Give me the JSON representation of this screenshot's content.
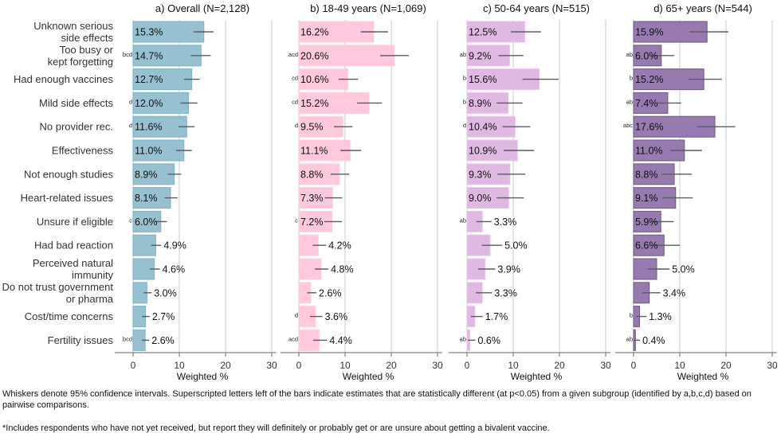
{
  "chart_data": [
    {
      "type": "bar",
      "title": "a) Overall (N=2,128)",
      "xlabel": "Weighted %",
      "xlim": [
        0,
        30
      ],
      "xticks": [
        0,
        10,
        20,
        30
      ],
      "grid": true,
      "color": "#97c1d1",
      "stroke": "#7fb2c5",
      "values": [
        15.3,
        14.7,
        12.7,
        12.0,
        11.6,
        11.0,
        8.9,
        8.1,
        6.0,
        4.9,
        4.6,
        3.0,
        2.7,
        2.6
      ],
      "ci": [
        [
          13.1,
          17.4
        ],
        [
          12.5,
          16.8
        ],
        [
          11.0,
          14.4
        ],
        [
          10.2,
          13.9
        ],
        [
          9.8,
          13.3
        ],
        [
          9.3,
          12.7
        ],
        [
          7.5,
          10.4
        ],
        [
          6.8,
          9.6
        ],
        [
          4.8,
          7.3
        ],
        [
          3.9,
          6.1
        ],
        [
          3.6,
          5.8
        ],
        [
          2.3,
          4.0
        ],
        [
          1.9,
          3.6
        ],
        [
          1.9,
          3.5
        ]
      ],
      "sig": [
        "",
        "bcd",
        "",
        "d",
        "d",
        "",
        "",
        "",
        "c",
        "",
        "",
        "",
        "",
        "bcd"
      ]
    },
    {
      "type": "bar",
      "title": "b) 18-49 years (N=1,069)",
      "xlabel": "Weighted %",
      "xlim": [
        0,
        30
      ],
      "xticks": [
        0,
        10,
        20,
        30
      ],
      "grid": true,
      "color": "#ffc8dc",
      "stroke": "#fbd0e0",
      "values": [
        16.2,
        20.6,
        10.6,
        15.2,
        9.5,
        11.1,
        8.8,
        7.3,
        7.2,
        4.2,
        4.8,
        2.6,
        3.6,
        4.4
      ],
      "ci": [
        [
          13.4,
          19.3
        ],
        [
          17.6,
          23.8
        ],
        [
          8.6,
          12.8
        ],
        [
          12.6,
          18.0
        ],
        [
          7.6,
          11.6
        ],
        [
          9.0,
          13.5
        ],
        [
          6.9,
          10.9
        ],
        [
          5.6,
          9.4
        ],
        [
          5.5,
          9.3
        ],
        [
          3.0,
          5.9
        ],
        [
          3.5,
          6.4
        ],
        [
          1.8,
          3.8
        ],
        [
          2.4,
          5.1
        ],
        [
          3.1,
          6.1
        ]
      ],
      "sig": [
        "",
        "acd",
        "cd",
        "cd",
        "d",
        "",
        "",
        "",
        "c",
        "",
        "",
        "",
        "d",
        "acd"
      ]
    },
    {
      "type": "bar",
      "title": "c) 50-64 years (N=515)",
      "xlabel": "Weighted %",
      "xlim": [
        0,
        30
      ],
      "xticks": [
        0,
        10,
        20,
        30
      ],
      "grid": true,
      "color": "#e0b9e3",
      "stroke": "#e6c6e8",
      "values": [
        12.5,
        9.2,
        15.6,
        8.9,
        10.4,
        10.9,
        9.3,
        9.0,
        3.3,
        5.0,
        3.9,
        3.3,
        1.7,
        0.6
      ],
      "ci": [
        [
          9.5,
          16.0
        ],
        [
          6.8,
          12.2
        ],
        [
          12.0,
          19.8
        ],
        [
          6.4,
          12.0
        ],
        [
          7.7,
          13.7
        ],
        [
          7.9,
          14.5
        ],
        [
          6.6,
          12.6
        ],
        [
          6.4,
          12.3
        ],
        [
          2.0,
          5.3
        ],
        [
          3.2,
          7.6
        ],
        [
          2.4,
          6.1
        ],
        [
          1.9,
          5.4
        ],
        [
          0.8,
          3.4
        ],
        [
          0.2,
          1.8
        ]
      ],
      "sig": [
        "",
        "ab",
        "b",
        "b",
        "d",
        "",
        "",
        "",
        "ab",
        "",
        "",
        "",
        "",
        "ab"
      ]
    },
    {
      "type": "bar",
      "title": "d) 65+ years (N=544)",
      "xlabel": "Weighted %",
      "xlim": [
        0,
        30
      ],
      "xticks": [
        0,
        10,
        20,
        30
      ],
      "grid": true,
      "color": "#967ab0",
      "stroke": "#6e5a80",
      "values": [
        15.9,
        6.0,
        15.2,
        7.4,
        17.6,
        11.0,
        8.8,
        9.1,
        5.9,
        6.6,
        5.0,
        3.4,
        1.3,
        0.4
      ],
      "ci": [
        [
          12.1,
          20.5
        ],
        [
          4.0,
          8.8
        ],
        [
          11.9,
          19.1
        ],
        [
          5.2,
          10.3
        ],
        [
          13.8,
          22.0
        ],
        [
          8.0,
          14.8
        ],
        [
          6.1,
          12.6
        ],
        [
          6.2,
          12.8
        ],
        [
          3.9,
          8.7
        ],
        [
          4.3,
          10.0
        ],
        [
          3.1,
          7.8
        ],
        [
          1.9,
          5.8
        ],
        [
          0.6,
          2.8
        ],
        [
          0.1,
          1.4
        ]
      ],
      "sig": [
        "",
        "ab",
        "b",
        "ab",
        "abc",
        "",
        "",
        "",
        "",
        "",
        "",
        "",
        "b",
        "ab"
      ]
    }
  ],
  "categories": [
    [
      "Unknown serious",
      "side effects"
    ],
    [
      "Too busy or",
      "kept forgetting"
    ],
    [
      "Had enough vaccines"
    ],
    [
      "Mild side effects"
    ],
    [
      "No provider rec."
    ],
    [
      "Effectiveness"
    ],
    [
      "Not enough studies"
    ],
    [
      "Heart-related issues"
    ],
    [
      "Unsure if eligible"
    ],
    [
      "Had bad reaction"
    ],
    [
      "Perceived natural",
      "immunity"
    ],
    [
      "Do not trust government",
      "or pharma"
    ],
    [
      "Cost/time concerns"
    ],
    [
      "Fertility issues"
    ]
  ],
  "notes": {
    "whiskers": "Whiskers denote 95% confidence intervals. Superscripted letters left of the bars indicate estimates that are statistically different (at p<0.05) from a given subgroup (identified by a,b,c,d) based on pairwise comparisons.",
    "footnote": "*Includes respondents who have not yet received, but report they will definitely or probably get or are unsure about getting a bivalent vaccine."
  }
}
